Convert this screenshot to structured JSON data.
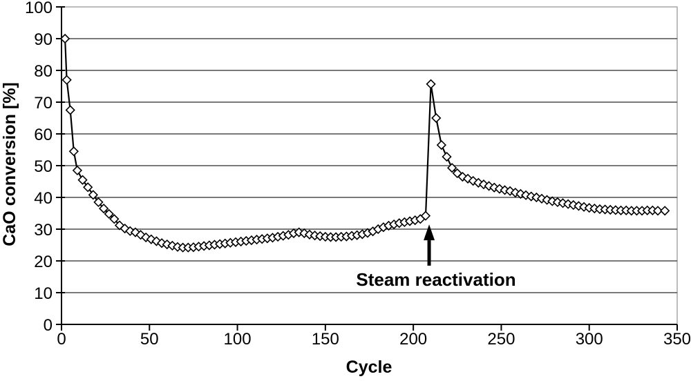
{
  "chart_data": {
    "type": "line",
    "title": "",
    "xlabel": "Cycle",
    "ylabel": "CaO conversion [%]",
    "xlim": [
      0,
      350
    ],
    "ylim": [
      0,
      100
    ],
    "x_ticks": [
      0,
      50,
      100,
      150,
      200,
      250,
      300,
      350
    ],
    "y_ticks": [
      0,
      10,
      20,
      30,
      40,
      50,
      60,
      70,
      80,
      90,
      100
    ],
    "grid": "horizontal",
    "legend": "none",
    "marker": "open-diamond",
    "colors": {
      "line": "#000000",
      "marker_fill": "#ffffff",
      "marker_stroke": "#000000",
      "gridline": "#4d4d4d",
      "plot_border": "#a6a6a6",
      "axis": "#000000",
      "text": "#000000",
      "background": "#ffffff"
    },
    "series": [
      {
        "name": "CaO conversion",
        "points": [
          [
            2,
            90.0
          ],
          [
            3,
            77.0
          ],
          [
            5,
            67.5
          ],
          [
            7,
            54.5
          ],
          [
            9,
            48.5
          ],
          [
            12,
            45.5
          ],
          [
            15,
            43.2
          ],
          [
            18,
            40.8
          ],
          [
            21,
            38.5
          ],
          [
            24,
            36.5
          ],
          [
            27,
            34.8
          ],
          [
            30,
            33.2
          ],
          [
            33,
            31.2
          ],
          [
            36,
            30.2
          ],
          [
            39,
            29.4
          ],
          [
            42,
            29.0
          ],
          [
            45,
            28.2
          ],
          [
            48,
            27.4
          ],
          [
            51,
            26.8
          ],
          [
            54,
            26.2
          ],
          [
            57,
            25.6
          ],
          [
            60,
            25.2
          ],
          [
            63,
            24.8
          ],
          [
            66,
            24.4
          ],
          [
            69,
            24.2
          ],
          [
            72,
            24.2
          ],
          [
            75,
            24.3
          ],
          [
            78,
            24.5
          ],
          [
            81,
            24.7
          ],
          [
            84,
            24.9
          ],
          [
            87,
            25.1
          ],
          [
            90,
            25.3
          ],
          [
            93,
            25.5
          ],
          [
            96,
            25.7
          ],
          [
            99,
            25.9
          ],
          [
            102,
            26.1
          ],
          [
            105,
            26.3
          ],
          [
            108,
            26.5
          ],
          [
            111,
            26.7
          ],
          [
            114,
            26.9
          ],
          [
            117,
            27.1
          ],
          [
            120,
            27.3
          ],
          [
            123,
            27.6
          ],
          [
            126,
            27.9
          ],
          [
            129,
            28.2
          ],
          [
            132,
            28.7
          ],
          [
            135,
            29.0
          ],
          [
            138,
            28.7
          ],
          [
            141,
            28.3
          ],
          [
            144,
            28.0
          ],
          [
            147,
            27.8
          ],
          [
            150,
            27.6
          ],
          [
            153,
            27.5
          ],
          [
            156,
            27.5
          ],
          [
            159,
            27.6
          ],
          [
            162,
            27.7
          ],
          [
            165,
            27.9
          ],
          [
            168,
            28.1
          ],
          [
            171,
            28.4
          ],
          [
            174,
            28.8
          ],
          [
            177,
            29.3
          ],
          [
            180,
            30.0
          ],
          [
            183,
            30.6
          ],
          [
            186,
            31.1
          ],
          [
            189,
            31.5
          ],
          [
            192,
            31.9
          ],
          [
            195,
            32.2
          ],
          [
            198,
            32.5
          ],
          [
            201,
            32.8
          ],
          [
            204,
            33.2
          ],
          [
            207,
            34.2
          ],
          [
            210,
            75.7
          ],
          [
            213,
            65.0
          ],
          [
            216,
            56.5
          ],
          [
            219,
            52.8
          ],
          [
            222,
            49.3
          ],
          [
            225,
            47.6
          ],
          [
            228,
            46.5
          ],
          [
            231,
            45.9
          ],
          [
            234,
            45.2
          ],
          [
            237,
            44.6
          ],
          [
            240,
            44.1
          ],
          [
            243,
            43.6
          ],
          [
            246,
            43.1
          ],
          [
            249,
            42.7
          ],
          [
            252,
            42.3
          ],
          [
            255,
            42.0
          ],
          [
            258,
            41.5
          ],
          [
            261,
            41.1
          ],
          [
            264,
            40.7
          ],
          [
            267,
            40.3
          ],
          [
            270,
            40.0
          ],
          [
            273,
            39.6
          ],
          [
            276,
            39.2
          ],
          [
            279,
            38.8
          ],
          [
            282,
            38.5
          ],
          [
            285,
            38.2
          ],
          [
            288,
            37.9
          ],
          [
            291,
            37.6
          ],
          [
            294,
            37.3
          ],
          [
            297,
            37.0
          ],
          [
            300,
            36.7
          ],
          [
            303,
            36.5
          ],
          [
            306,
            36.3
          ],
          [
            309,
            36.2
          ],
          [
            312,
            36.1
          ],
          [
            315,
            36.0
          ],
          [
            318,
            35.9
          ],
          [
            321,
            35.9
          ],
          [
            324,
            35.8
          ],
          [
            327,
            35.8
          ],
          [
            330,
            35.8
          ],
          [
            333,
            35.9
          ],
          [
            336,
            35.9
          ],
          [
            339,
            35.8
          ],
          [
            343,
            35.8
          ]
        ]
      }
    ],
    "annotation": {
      "text": "Steam reactivation",
      "arrow": {
        "x_cycle": 209,
        "tip_value": 31.5,
        "head_base_value": 26.5,
        "tail_value": 18.5
      }
    }
  }
}
